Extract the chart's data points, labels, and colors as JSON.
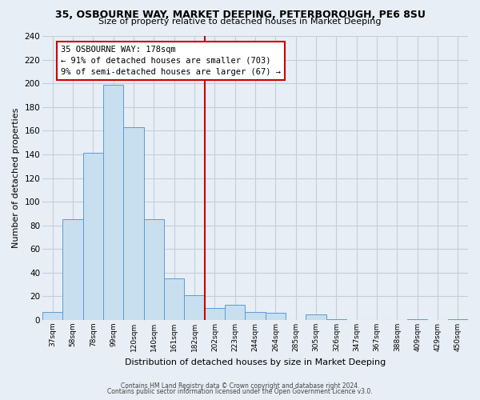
{
  "title": "35, OSBOURNE WAY, MARKET DEEPING, PETERBOROUGH, PE6 8SU",
  "subtitle": "Size of property relative to detached houses in Market Deeping",
  "xlabel": "Distribution of detached houses by size in Market Deeping",
  "ylabel": "Number of detached properties",
  "bar_labels": [
    "37sqm",
    "58sqm",
    "78sqm",
    "99sqm",
    "120sqm",
    "140sqm",
    "161sqm",
    "182sqm",
    "202sqm",
    "223sqm",
    "244sqm",
    "264sqm",
    "285sqm",
    "305sqm",
    "326sqm",
    "347sqm",
    "367sqm",
    "388sqm",
    "409sqm",
    "429sqm",
    "450sqm"
  ],
  "bar_values": [
    7,
    85,
    141,
    199,
    163,
    85,
    35,
    21,
    10,
    13,
    7,
    6,
    0,
    5,
    1,
    0,
    0,
    0,
    1,
    0,
    1
  ],
  "bar_color": "#c8dff0",
  "bar_edge_color": "#5b9bd5",
  "vline_x": 7.5,
  "vline_color": "#cc0000",
  "annotation_title": "35 OSBOURNE WAY: 178sqm",
  "annotation_line1": "← 91% of detached houses are smaller (703)",
  "annotation_line2": "9% of semi-detached houses are larger (67) →",
  "annotation_box_color": "#ffffff",
  "annotation_box_edge_color": "#cc0000",
  "ylim": [
    0,
    240
  ],
  "yticks": [
    0,
    20,
    40,
    60,
    80,
    100,
    120,
    140,
    160,
    180,
    200,
    220,
    240
  ],
  "footer1": "Contains HM Land Registry data © Crown copyright and database right 2024.",
  "footer2": "Contains public sector information licensed under the Open Government Licence v3.0.",
  "bg_color": "#e8eef5",
  "grid_color": "#c5cdd8"
}
